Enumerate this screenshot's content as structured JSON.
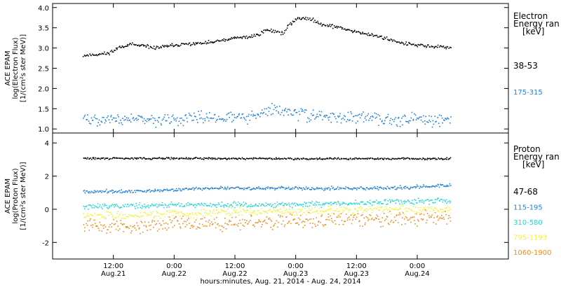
{
  "chart_data": [
    {
      "type": "scatter",
      "panel": "electron",
      "ylabel_lines": [
        "ACE EPAM",
        "log(Electron Flux)",
        "[1/(cm²s ster MeV)]"
      ],
      "ylim": [
        0.9,
        4.1
      ],
      "y_ticks": [
        1.0,
        1.5,
        2.0,
        2.5,
        3.0,
        3.5,
        4.0
      ],
      "y_tick_labels": [
        "1.0",
        "1.5",
        "2.0",
        "2.5",
        "3.0",
        "3.5",
        "4.0"
      ],
      "legend_title": [
        "Electron",
        "Energy ran",
        "[keV]"
      ],
      "series": [
        {
          "name": "38-53",
          "color": "#000000",
          "points": [
            [
              0.0,
              2.83
            ],
            [
              0.1,
              2.85
            ],
            [
              0.2,
              2.88
            ],
            [
              0.25,
              2.95
            ],
            [
              0.3,
              3.05
            ],
            [
              0.4,
              3.1
            ],
            [
              0.5,
              3.05
            ],
            [
              0.6,
              3.02
            ],
            [
              0.75,
              3.08
            ],
            [
              0.9,
              3.12
            ],
            [
              1.0,
              3.13
            ],
            [
              1.15,
              3.2
            ],
            [
              1.25,
              3.26
            ],
            [
              1.35,
              3.28
            ],
            [
              1.45,
              3.36
            ],
            [
              1.5,
              3.46
            ],
            [
              1.55,
              3.44
            ],
            [
              1.65,
              3.38
            ],
            [
              1.68,
              3.55
            ],
            [
              1.75,
              3.72
            ],
            [
              1.8,
              3.76
            ],
            [
              1.85,
              3.74
            ],
            [
              1.95,
              3.62
            ],
            [
              2.05,
              3.55
            ],
            [
              2.2,
              3.45
            ],
            [
              2.3,
              3.38
            ],
            [
              2.45,
              3.28
            ],
            [
              2.55,
              3.2
            ],
            [
              2.65,
              3.12
            ],
            [
              2.75,
              3.08
            ],
            [
              2.85,
              3.05
            ],
            [
              2.95,
              3.04
            ],
            [
              3.02,
              3.03
            ]
          ],
          "noise": 0.03
        },
        {
          "name": "175-315",
          "color": "#1f7fd6",
          "points": [
            [
              0.0,
              1.22
            ],
            [
              0.2,
              1.25
            ],
            [
              0.4,
              1.25
            ],
            [
              0.6,
              1.22
            ],
            [
              0.8,
              1.25
            ],
            [
              1.0,
              1.3
            ],
            [
              1.2,
              1.3
            ],
            [
              1.4,
              1.32
            ],
            [
              1.5,
              1.42
            ],
            [
              1.55,
              1.5
            ],
            [
              1.65,
              1.45
            ],
            [
              1.75,
              1.4
            ],
            [
              1.9,
              1.35
            ],
            [
              2.1,
              1.3
            ],
            [
              2.3,
              1.28
            ],
            [
              2.5,
              1.27
            ],
            [
              2.7,
              1.25
            ],
            [
              2.9,
              1.25
            ],
            [
              3.02,
              1.25
            ]
          ],
          "noise": 0.1
        }
      ]
    },
    {
      "type": "scatter",
      "panel": "proton",
      "ylabel_lines": [
        "ACE EPAM",
        "log(Proton Flux)",
        "[1/(cm²s ster MeV)]"
      ],
      "ylim": [
        -3.0,
        4.6
      ],
      "y_ticks": [
        -2,
        0,
        2,
        4
      ],
      "y_tick_labels": [
        "-2",
        "0",
        "2",
        "4"
      ],
      "legend_title": [
        "Proton",
        "Energy ran",
        "[keV]"
      ],
      "series": [
        {
          "name": "47-68",
          "color": "#000000",
          "points": [
            [
              0.0,
              3.1
            ],
            [
              1.0,
              3.1
            ],
            [
              2.0,
              3.08
            ],
            [
              3.02,
              3.08
            ]
          ],
          "noise": 0.04
        },
        {
          "name": "115-195",
          "color": "#1f7fd6",
          "points": [
            [
              0.0,
              1.1
            ],
            [
              0.5,
              1.12
            ],
            [
              0.75,
              1.2
            ],
            [
              1.0,
              1.3
            ],
            [
              1.5,
              1.3
            ],
            [
              2.0,
              1.28
            ],
            [
              2.5,
              1.32
            ],
            [
              2.8,
              1.4
            ],
            [
              3.02,
              1.5
            ]
          ],
          "noise": 0.07
        },
        {
          "name": "310-580",
          "color": "#22d5d5",
          "points": [
            [
              0.0,
              0.2
            ],
            [
              0.5,
              0.25
            ],
            [
              1.0,
              0.3
            ],
            [
              1.5,
              0.3
            ],
            [
              2.0,
              0.35
            ],
            [
              2.5,
              0.45
            ],
            [
              3.02,
              0.55
            ]
          ],
          "noise": 0.12
        },
        {
          "name": "795-1193",
          "color": "#f2f23c",
          "points": [
            [
              0.0,
              -0.4
            ],
            [
              0.5,
              -0.3
            ],
            [
              1.0,
              -0.2
            ],
            [
              1.5,
              -0.1
            ],
            [
              2.0,
              -0.05
            ],
            [
              2.5,
              0.0
            ],
            [
              3.02,
              0.05
            ]
          ],
          "noise": 0.17
        },
        {
          "name": "1060-1900",
          "color": "#f08c1a",
          "points": [
            [
              0.0,
              -1.0
            ],
            [
              0.5,
              -0.95
            ],
            [
              1.0,
              -0.8
            ],
            [
              1.5,
              -0.75
            ],
            [
              2.0,
              -0.65
            ],
            [
              2.5,
              -0.55
            ],
            [
              3.02,
              -0.45
            ]
          ],
          "noise": 0.3
        }
      ]
    }
  ],
  "x_axis": {
    "title": "hours:minutes, Aug. 21, 2014 - Aug. 24, 2014",
    "xlim_days": [
      -0.25,
      3.5
    ],
    "ticks": [
      {
        "day": 0.25,
        "time": "12:00",
        "date": "Aug.21"
      },
      {
        "day": 0.75,
        "time": "0:00",
        "date": "Aug.22"
      },
      {
        "day": 1.25,
        "time": "12:00",
        "date": "Aug.22"
      },
      {
        "day": 1.75,
        "time": "0:00",
        "date": "Aug.23"
      },
      {
        "day": 2.25,
        "time": "12:00",
        "date": "Aug.23"
      },
      {
        "day": 2.75,
        "time": "0:00",
        "date": "Aug.24"
      }
    ]
  }
}
